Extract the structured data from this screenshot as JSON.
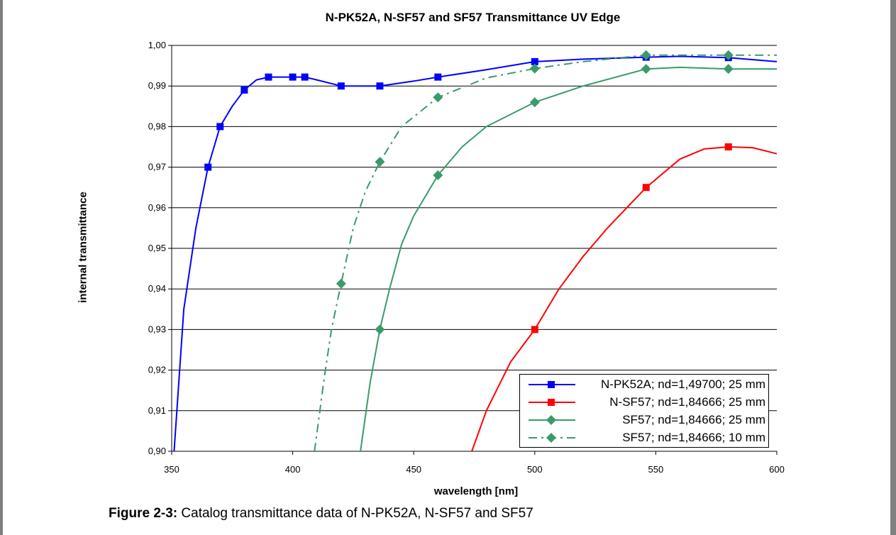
{
  "chart_data": {
    "type": "line",
    "title": "N-PK52A, N-SF57 and SF57 Transmittance UV Edge",
    "xlabel": "wavelength [nm]",
    "ylabel": "internal transmittance",
    "xlim": [
      350,
      600
    ],
    "ylim": [
      0.9,
      1.0
    ],
    "x_ticks": [
      "350",
      "400",
      "450",
      "500",
      "550",
      "600"
    ],
    "y_ticks": [
      "0,90",
      "0,91",
      "0,92",
      "0,93",
      "0,94",
      "0,95",
      "0,96",
      "0,97",
      "0,98",
      "0,99",
      "1,00"
    ],
    "grid": "horizontal",
    "legend_position": "bottom-right",
    "series": [
      {
        "name": "N-PK52A; nd=1,49700; 25 mm",
        "color": "#0000ff",
        "marker": "square",
        "dash": "solid",
        "x": [
          365,
          370,
          380,
          390,
          400,
          405,
          420,
          436,
          460,
          500,
          546,
          580
        ],
        "y": [
          0.97,
          0.98,
          0.989,
          0.9922,
          0.9922,
          0.9922,
          0.99,
          0.99,
          0.9922,
          0.996,
          0.9971,
          0.997
        ],
        "curve_x": [
          351,
          355,
          360,
          365,
          370,
          375,
          380,
          385,
          390,
          395,
          400,
          405,
          410,
          420,
          436,
          450,
          460,
          480,
          500,
          520,
          546,
          560,
          580,
          600
        ],
        "curve_y": [
          0.9,
          0.935,
          0.955,
          0.97,
          0.98,
          0.985,
          0.989,
          0.9915,
          0.9922,
          0.9922,
          0.9922,
          0.9922,
          0.9915,
          0.99,
          0.99,
          0.9912,
          0.9922,
          0.994,
          0.996,
          0.9966,
          0.9971,
          0.9973,
          0.997,
          0.996
        ]
      },
      {
        "name": "N-SF57; nd=1,84666; 25 mm",
        "color": "#ff0000",
        "marker": "square",
        "dash": "solid",
        "x": [
          500,
          546,
          580
        ],
        "y": [
          0.93,
          0.965,
          0.975
        ],
        "curve_x": [
          474,
          480,
          490,
          500,
          510,
          520,
          530,
          546,
          560,
          570,
          580,
          590,
          600
        ],
        "curve_y": [
          0.9,
          0.91,
          0.922,
          0.93,
          0.94,
          0.948,
          0.955,
          0.965,
          0.972,
          0.9745,
          0.975,
          0.9748,
          0.9733
        ]
      },
      {
        "name": "SF57; nd=1,84666; 25 mm",
        "color": "#3a9a6a",
        "marker": "diamond",
        "dash": "solid",
        "x": [
          436,
          460,
          500,
          546,
          580
        ],
        "y": [
          0.93,
          0.968,
          0.986,
          0.9942,
          0.9942
        ],
        "curve_x": [
          428,
          432,
          436,
          440,
          445,
          450,
          460,
          470,
          480,
          500,
          520,
          546,
          560,
          580,
          600
        ],
        "curve_y": [
          0.9,
          0.917,
          0.93,
          0.94,
          0.951,
          0.958,
          0.968,
          0.975,
          0.98,
          0.986,
          0.99,
          0.9942,
          0.9946,
          0.9942,
          0.9942
        ]
      },
      {
        "name": "SF57; nd=1,84666; 10 mm",
        "color": "#3a9a6a",
        "marker": "diamond",
        "dash": "dashdot",
        "x": [
          420,
          436,
          460,
          500,
          546,
          580
        ],
        "y": [
          0.9413,
          0.9713,
          0.9872,
          0.9943,
          0.9976,
          0.9976
        ],
        "curve_x": [
          409,
          413,
          416,
          420,
          425,
          430,
          436,
          445,
          460,
          480,
          500,
          520,
          546,
          580,
          600
        ],
        "curve_y": [
          0.9,
          0.918,
          0.93,
          0.9413,
          0.955,
          0.964,
          0.9713,
          0.98,
          0.9872,
          0.992,
          0.9943,
          0.996,
          0.9976,
          0.9976,
          0.9976
        ]
      }
    ]
  },
  "caption": {
    "label": "Figure 2-3:",
    "text": " Catalog transmittance data of N-PK52A, N-SF57 and SF57"
  }
}
